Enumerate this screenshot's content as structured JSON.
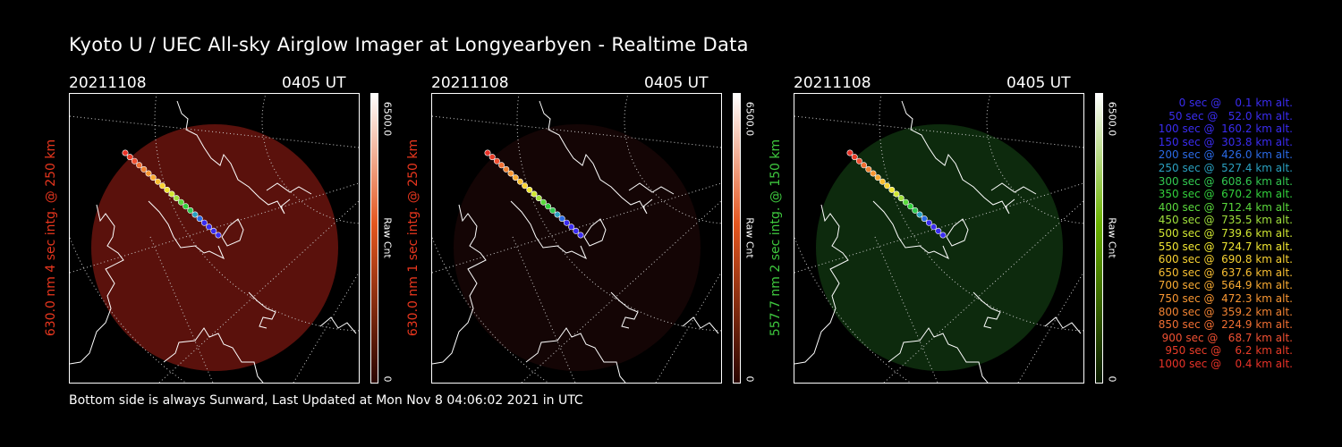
{
  "title": "Kyoto U / UEC All-sky Airglow Imager at Longyearbyen - Realtime Data",
  "footer": "Bottom side is always Sunward, Last Updated at Mon Nov  8 04:06:02 2021 in UTC",
  "panels": [
    {
      "date": "20211108",
      "time": "0405 UT",
      "wavelength_label": "630.0 nm 4 sec intg. @ 250 km",
      "label_color": "#e8361e",
      "disk_color": "#5a110c",
      "colorbar_top": "#ffffff",
      "colorbar_mid": "#e4561f",
      "colorbar_bottom": "#2a0500",
      "colorbar_max": "6500.0",
      "colorbar_min": "0",
      "colorbar_unit": "Raw Cnt"
    },
    {
      "date": "20211108",
      "time": "0405 UT",
      "wavelength_label": "630.0 nm 1 sec intg. @ 250 km",
      "label_color": "#e8361e",
      "disk_color": "#140505",
      "colorbar_top": "#ffffff",
      "colorbar_mid": "#e4561f",
      "colorbar_bottom": "#2a0500",
      "colorbar_max": "6500.0",
      "colorbar_min": "0",
      "colorbar_unit": "Raw Cnt"
    },
    {
      "date": "20211108",
      "time": "0405 UT",
      "wavelength_label": "557.7 nm 2 sec intg. @ 150 km",
      "label_color": "#3ec83e",
      "disk_color": "#0d2a0d",
      "colorbar_top": "#ffffff",
      "colorbar_mid": "#69b000",
      "colorbar_bottom": "#0a1a00",
      "colorbar_max": "6500.0",
      "colorbar_min": "0",
      "colorbar_unit": "Raw Cnt"
    }
  ],
  "trajectory_legend": [
    {
      "text": "   0 sec @    0.1 km alt.",
      "color": "#3a2cf0"
    },
    {
      "text": "  50 sec @   52.0 km alt.",
      "color": "#3a2cf0"
    },
    {
      "text": " 100 sec @  160.2 km alt.",
      "color": "#3a2cf0"
    },
    {
      "text": " 150 sec @  303.8 km alt.",
      "color": "#3a2cf0"
    },
    {
      "text": " 200 sec @  426.0 km alt.",
      "color": "#2a6ae6"
    },
    {
      "text": " 250 sec @  527.4 km alt.",
      "color": "#2aa0c0"
    },
    {
      "text": " 300 sec @  608.6 km alt.",
      "color": "#32c850"
    },
    {
      "text": " 350 sec @  670.2 km alt.",
      "color": "#32d03c"
    },
    {
      "text": " 400 sec @  712.4 km alt.",
      "color": "#5ad83c"
    },
    {
      "text": " 450 sec @  735.5 km alt.",
      "color": "#a0e03c"
    },
    {
      "text": " 500 sec @  739.6 km alt.",
      "color": "#d0e632"
    },
    {
      "text": " 550 sec @  724.7 km alt.",
      "color": "#f0e632"
    },
    {
      "text": " 600 sec @  690.8 km alt.",
      "color": "#f8d232"
    },
    {
      "text": " 650 sec @  637.6 km alt.",
      "color": "#f8be32"
    },
    {
      "text": " 700 sec @  564.9 km alt.",
      "color": "#f8aa32"
    },
    {
      "text": " 750 sec @  472.3 km alt.",
      "color": "#f89632"
    },
    {
      "text": " 800 sec @  359.2 km alt.",
      "color": "#f08232"
    },
    {
      "text": " 850 sec @  224.9 km alt.",
      "color": "#f06e32"
    },
    {
      "text": " 900 sec @   68.7 km alt.",
      "color": "#f05032"
    },
    {
      "text": " 950 sec @    6.2 km alt.",
      "color": "#e83c28"
    },
    {
      "text": "1000 sec @    0.4 km alt.",
      "color": "#e83228"
    }
  ]
}
